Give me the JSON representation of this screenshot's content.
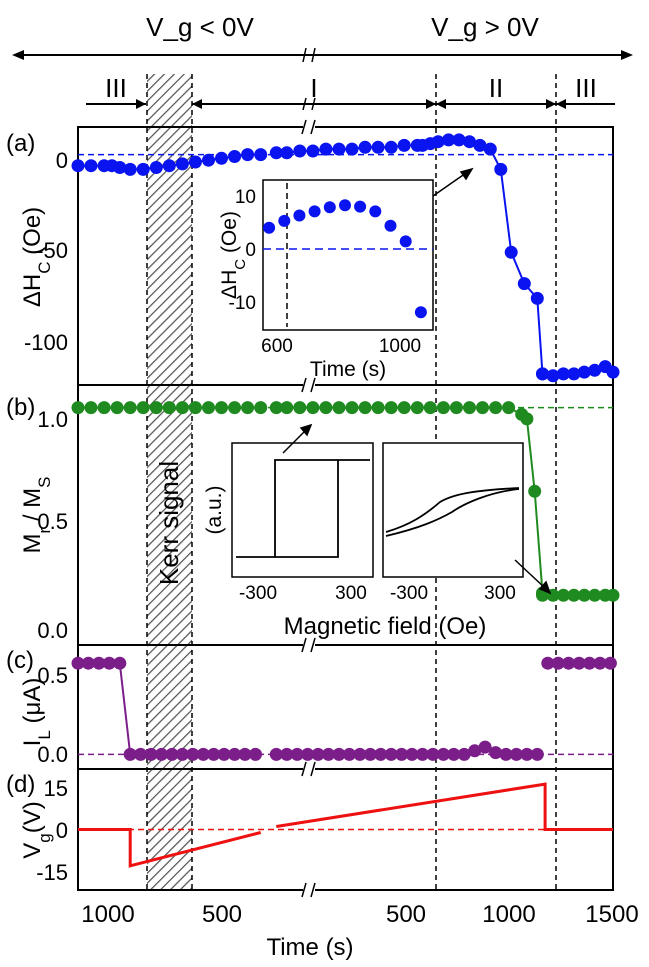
{
  "figure": {
    "top_labels": {
      "neg": "V_g < 0V",
      "pos": "V_g > 0V"
    },
    "regions": [
      "III",
      "I",
      "II",
      "III"
    ],
    "kerr_label": "Kerr signal"
  },
  "chart_data": [
    {
      "panel": "(a)",
      "type": "scatter",
      "ylabel": "ΔH_C (Oe)",
      "yticks": [
        "0",
        "-50",
        "-100"
      ],
      "ylim": [
        -125,
        15
      ],
      "reference_line": 0,
      "color": "#0a14f0",
      "series": [
        {
          "x": [
            1,
            1.5,
            2,
            2.3,
            2.6,
            3,
            3.5,
            4,
            4.5,
            5,
            5.5,
            6,
            6.5,
            7,
            7.5,
            8
          ],
          "y": [
            -6,
            -6,
            -6,
            -6,
            -7,
            -8,
            -8,
            -7,
            -6,
            -5,
            -4,
            -3,
            -2,
            -1,
            0,
            0
          ]
        },
        {
          "x": [
            8.6,
            9,
            9.5,
            10,
            10.5,
            11,
            11.5,
            12,
            12.5,
            13,
            13.5,
            14,
            14.2,
            14.5,
            14.8,
            15.2,
            15.6,
            16,
            16.4,
            16.8,
            17.2,
            17.6,
            18.1,
            18.6,
            18.8
          ],
          "y": [
            1,
            1,
            2,
            2,
            3,
            3,
            3,
            4,
            4,
            4,
            5,
            5,
            5,
            6,
            7,
            8,
            8,
            7,
            5,
            3,
            -8,
            -53,
            -70,
            -78,
            -119
          ]
        },
        {
          "x": [
            18.8,
            19.2,
            19.6,
            20,
            20.4,
            20.8,
            21.2,
            21.5
          ],
          "y": [
            -119,
            -120,
            -119,
            -119,
            -118,
            -117,
            -115,
            -118
          ]
        }
      ],
      "inset": {
        "type": "scatter",
        "ylabel": "ΔH_C (Oe)",
        "xlabel": "Time (s)",
        "xticks": [
          "600",
          "1000"
        ],
        "yticks": [
          "10",
          "0",
          "-10"
        ],
        "xlim": [
          560,
          1120
        ],
        "ylim": [
          -10,
          12
        ],
        "x": [
          580,
          630,
          680,
          730,
          780,
          830,
          880,
          930,
          980,
          1030,
          1080
        ],
        "y": [
          5,
          6,
          6.8,
          7.4,
          8,
          8.3,
          8.1,
          7.4,
          5.3,
          3,
          -7.4
        ]
      }
    },
    {
      "panel": "(b)",
      "type": "scatter",
      "ylabel": "M_r / M_S",
      "yticks": [
        "1.0",
        "0.5",
        "0.0"
      ],
      "ylim": [
        -0.05,
        1.1
      ],
      "reference_line": 1.0,
      "color": "#1f8a1f",
      "series": [
        {
          "x": [
            1,
            1.5,
            2,
            2.5,
            3,
            3.5,
            4,
            4.5,
            5,
            5.5,
            6,
            6.5,
            7,
            7.5,
            8
          ],
          "y": [
            1,
            1,
            1,
            1,
            1,
            1,
            1,
            1,
            1,
            1,
            1,
            1,
            1,
            1,
            1
          ]
        },
        {
          "x": [
            8.6,
            9,
            9.5,
            10,
            10.5,
            11,
            11.5,
            12,
            12.5,
            13,
            13.5,
            14,
            14.5,
            15,
            15.5,
            16,
            16.5,
            17,
            17.5,
            18,
            18.2,
            18.5,
            18.8
          ],
          "y": [
            1,
            1,
            1,
            1,
            1,
            1,
            1,
            1,
            1,
            1,
            1,
            1,
            1,
            1,
            1,
            1,
            1,
            1,
            1,
            0.97,
            0.95,
            0.63,
            0.18
          ]
        },
        {
          "x": [
            18.8,
            19.2,
            19.6,
            20,
            20.4,
            20.8,
            21.2,
            21.5
          ],
          "y": [
            0.17,
            0.17,
            0.17,
            0.17,
            0.17,
            0.17,
            0.17,
            0.17
          ]
        }
      ],
      "insets": {
        "ylabel": "(a.u.)",
        "xlabel": "Magnetic field (Oe)",
        "xticks": [
          "-300",
          "300"
        ],
        "type": "line"
      }
    },
    {
      "panel": "(c)",
      "type": "scatter",
      "ylabel": "I_L (μA)",
      "yticks": [
        "0.5",
        "0.0"
      ],
      "ylim": [
        -0.08,
        0.6
      ],
      "reference_line": 0.0,
      "color": "#7b1e8a",
      "series": [
        {
          "x": [
            1,
            1.4,
            1.8,
            2.2,
            2.6,
            3,
            3.4,
            3.8,
            4.2,
            4.6,
            5,
            5.4,
            5.8,
            6.2,
            6.6,
            7,
            7.4,
            7.8
          ],
          "y": [
            0.5,
            0.5,
            0.5,
            0.5,
            0.5,
            0,
            0,
            0,
            0,
            0,
            0,
            0,
            0,
            0,
            0,
            0,
            0,
            0
          ]
        },
        {
          "x": [
            8.6,
            9,
            9.4,
            9.8,
            10.2,
            10.6,
            11,
            11.4,
            11.8,
            12.2,
            12.6,
            13,
            13.4,
            13.8,
            14.2,
            14.6,
            15,
            15.4,
            15.8,
            16.2,
            16.6,
            17,
            17.4,
            17.8,
            18.2,
            18.6
          ],
          "y": [
            0,
            0,
            0,
            0,
            0,
            0,
            0,
            0,
            0,
            0,
            0,
            0,
            0,
            0,
            0,
            0,
            0,
            0,
            0,
            0.02,
            0.04,
            0.01,
            0,
            0,
            0,
            0
          ]
        },
        {
          "x": [
            19.0,
            19.4,
            19.8,
            20.2,
            20.6,
            21.0,
            21.4
          ],
          "y": [
            0.5,
            0.5,
            0.5,
            0.5,
            0.5,
            0.5,
            0.5
          ]
        }
      ]
    },
    {
      "panel": "(d)",
      "type": "line",
      "ylabel": "V_g(V)",
      "xlabel": "Time (s)",
      "yticks": [
        "15",
        "0",
        "-15"
      ],
      "ylim": [
        -20,
        20
      ],
      "reference_line": 0,
      "color": "#ee1111",
      "xticks": [
        "1000",
        "500",
        "500",
        "1000",
        "1500"
      ],
      "series": [
        {
          "x": [
            1,
            3,
            3,
            8
          ],
          "y": [
            0,
            0,
            -12,
            -1
          ]
        },
        {
          "x": [
            8.6,
            18.9,
            18.9,
            21.5
          ],
          "y": [
            1,
            15,
            0,
            0
          ]
        }
      ]
    }
  ]
}
